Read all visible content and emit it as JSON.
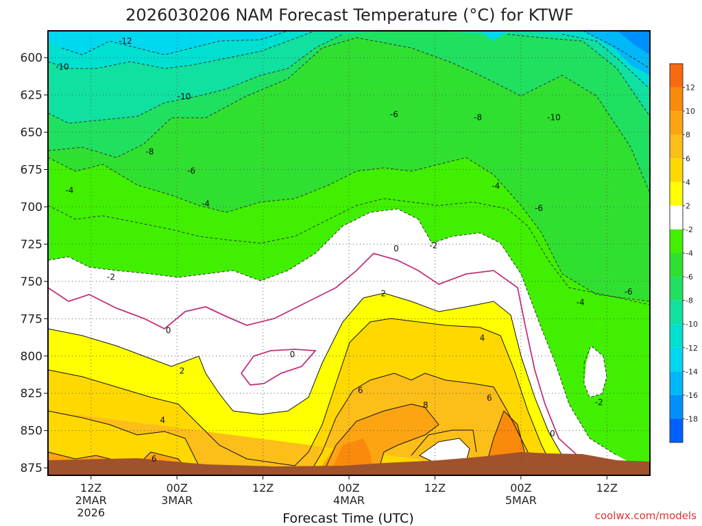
{
  "chart_data": {
    "type": "heatmap",
    "title": "2026030206 NAM Forecast Temperature (°C) for KTWF",
    "xlabel": "Forecast Time (UTC)",
    "ylabel": "",
    "y_ticks": [
      "600",
      "625",
      "650",
      "675",
      "700",
      "725",
      "750",
      "775",
      "800",
      "825",
      "850",
      "875"
    ],
    "y_values": [
      600,
      625,
      650,
      675,
      700,
      725,
      750,
      775,
      800,
      825,
      850,
      875
    ],
    "ylim": [
      582,
      880
    ],
    "y_inverted": true,
    "x_ticks": [
      {
        "lines": [
          "12Z",
          "2MAR",
          "2026"
        ]
      },
      {
        "lines": [
          "00Z",
          "3MAR"
        ]
      },
      {
        "lines": [
          "12Z"
        ]
      },
      {
        "lines": [
          "00Z",
          "4MAR"
        ]
      },
      {
        "lines": [
          "12Z"
        ]
      },
      {
        "lines": [
          "00Z",
          "5MAR"
        ]
      },
      {
        "lines": [
          "12Z"
        ]
      }
    ],
    "x_hours": [
      6,
      18,
      30,
      42,
      54,
      66,
      78
    ],
    "xlim": [
      0,
      84
    ],
    "grid": true,
    "colorbar": {
      "labels": [
        "12",
        "10",
        "8",
        "6",
        "4",
        "2",
        "-2",
        "-4",
        "-6",
        "-8",
        "-10",
        "-12",
        "-14",
        "-16",
        "-18"
      ],
      "colors": [
        "#f86a10",
        "#fa8a0c",
        "#fca412",
        "#fcbe18",
        "#ffd800",
        "#ffff00",
        "#ffffff",
        "#40f000",
        "#30e030",
        "#20e060",
        "#10e0a0",
        "#00e0d0",
        "#00d8f0",
        "#00b8f8",
        "#0090fc",
        "#0060ff"
      ]
    },
    "contour_labels": [
      {
        "text": "-12",
        "x": 10.8,
        "y": 589
      },
      {
        "text": "-10",
        "x": 2.0,
        "y": 606
      },
      {
        "text": "-10",
        "x": 19.0,
        "y": 626
      },
      {
        "text": "-6",
        "x": 48.3,
        "y": 638
      },
      {
        "text": "-8",
        "x": 60.0,
        "y": 640
      },
      {
        "text": "-10",
        "x": 70.6,
        "y": 640
      },
      {
        "text": "-8",
        "x": 14.2,
        "y": 663
      },
      {
        "text": "-6",
        "x": 20.0,
        "y": 676
      },
      {
        "text": "-4",
        "x": 3.0,
        "y": 689
      },
      {
        "text": "-4",
        "x": 22.0,
        "y": 698
      },
      {
        "text": "-4",
        "x": 62.5,
        "y": 686
      },
      {
        "text": "-6",
        "x": 68.5,
        "y": 701
      },
      {
        "text": "-2",
        "x": 53.8,
        "y": 726
      },
      {
        "text": "0",
        "x": 48.6,
        "y": 728
      },
      {
        "text": "-2",
        "x": 8.8,
        "y": 747
      },
      {
        "text": "-4",
        "x": 74.3,
        "y": 764
      },
      {
        "text": "-6",
        "x": 81.0,
        "y": 757
      },
      {
        "text": "2",
        "x": 46.8,
        "y": 758
      },
      {
        "text": "0",
        "x": 16.8,
        "y": 783
      },
      {
        "text": "4",
        "x": 60.6,
        "y": 788
      },
      {
        "text": "0",
        "x": 34.1,
        "y": 799
      },
      {
        "text": "2",
        "x": 18.7,
        "y": 810
      },
      {
        "text": "6",
        "x": 43.6,
        "y": 823
      },
      {
        "text": "6",
        "x": 61.6,
        "y": 828
      },
      {
        "text": "8",
        "x": 52.7,
        "y": 833
      },
      {
        "text": "-2",
        "x": 76.9,
        "y": 831
      },
      {
        "text": "4",
        "x": 16.0,
        "y": 843
      },
      {
        "text": "0",
        "x": 70.4,
        "y": 852
      },
      {
        "text": "6",
        "x": 14.8,
        "y": 869
      }
    ]
  },
  "footer": {
    "credit": "coolwx.com/models"
  }
}
